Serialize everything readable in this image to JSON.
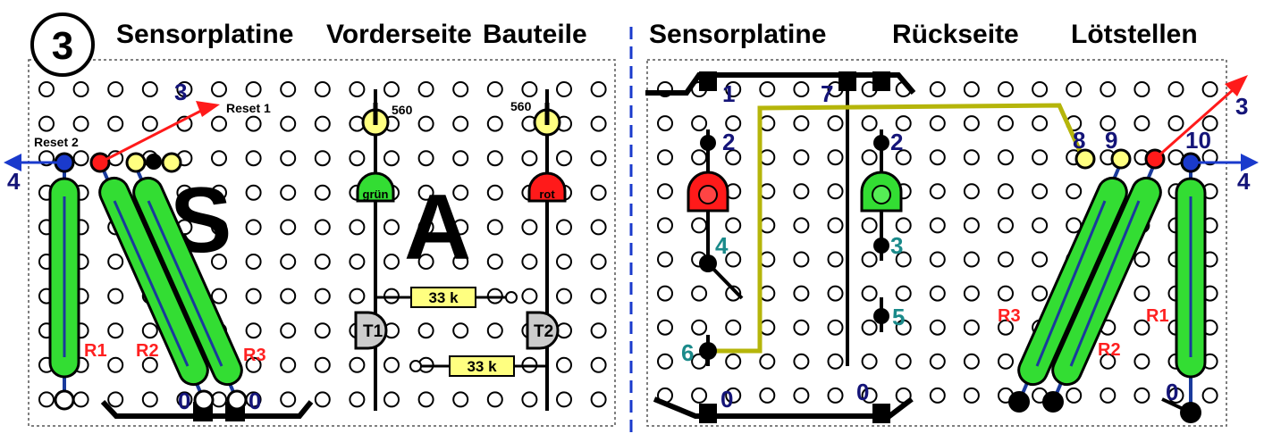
{
  "step_number": "3",
  "front_panel": {
    "title_1": "Sensorplatine",
    "title_2": "Vorderseite",
    "title_3": "Bauteile",
    "reset_1": "Reset 1",
    "reset_2": "Reset 2",
    "wire_3": "3",
    "wire_4": "4",
    "letter_s": "S",
    "letter_a": "A",
    "resistor_560_left": "560",
    "resistor_560_right": "560",
    "led_green": "grün",
    "led_red": "rot",
    "resistor_33k_top": "33 k",
    "resistor_33k_bottom": "33 k",
    "transistor_1": "T1",
    "transistor_2": "T2",
    "r1": "R1",
    "r2": "R2",
    "r3": "R3",
    "ground_a": "0",
    "ground_b": "0"
  },
  "back_panel": {
    "title_1": "Sensorplatine",
    "title_2": "Rückseite",
    "title_3": "Lötstellen",
    "n1": "1",
    "n7": "7",
    "n2_left": "2",
    "n2_right": "2",
    "n4": "4",
    "n3_teal": "3",
    "n5": "5",
    "n6": "6",
    "n8": "8",
    "n9": "9",
    "n10": "10",
    "wire_3": "3",
    "wire_4": "4",
    "r1": "R1",
    "r2": "R2",
    "r3": "R3",
    "ground_a": "0",
    "ground_b": "0",
    "ground_c": "0"
  },
  "colors": {
    "green": "#33dd33",
    "red": "#ff1a1a",
    "yellow": "#ffff80",
    "board_dot": "#ffffff",
    "wire_blue": "#1a3a9c",
    "wire_olive": "#b5b50a",
    "divider": "#1a3acc"
  }
}
